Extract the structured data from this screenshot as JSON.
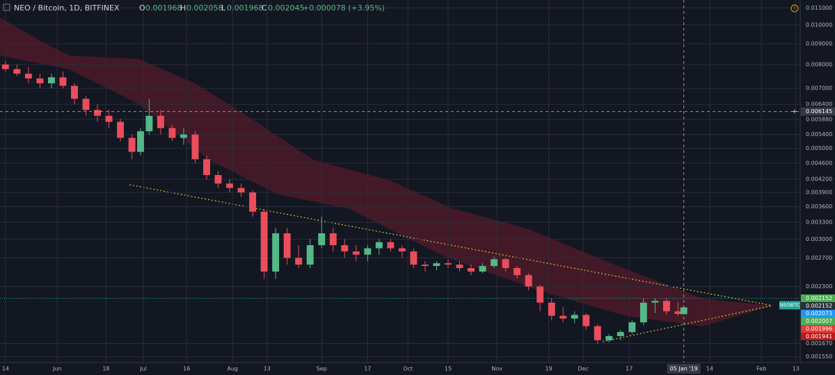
{
  "chart_data": {
    "type": "candlestick",
    "header": {
      "title": "NEO / Bitcoin, 1D, BITFINEX",
      "o_label": "O",
      "open": "0.001968",
      "h_label": "H",
      "high": "0.002058",
      "l_label": "L",
      "low": "0.001968",
      "c_label": "C",
      "close": "0.002045",
      "change": "+0.000078 (+3.95%)"
    },
    "log_scale": true,
    "grid": true,
    "up_color": "#53b987",
    "down_color": "#eb4d5c",
    "ylim": [
      0.0015,
      0.0115
    ],
    "yticks": [
      {
        "value": 0.011,
        "label": "0.011000"
      },
      {
        "value": 0.01,
        "label": "0.010000"
      },
      {
        "value": 0.009,
        "label": "0.009000"
      },
      {
        "value": 0.008,
        "label": "0.008000"
      },
      {
        "value": 0.007,
        "label": "0.007000"
      },
      {
        "value": 0.0064,
        "label": "0.006400"
      },
      {
        "value": 0.00588,
        "label": "0.005880"
      },
      {
        "value": 0.0054,
        "label": "0.005400"
      },
      {
        "value": 0.005,
        "label": "0.005000"
      },
      {
        "value": 0.0046,
        "label": "0.004600"
      },
      {
        "value": 0.0042,
        "label": "0.004200"
      },
      {
        "value": 0.0039,
        "label": "0.003900"
      },
      {
        "value": 0.0036,
        "label": "0.003600"
      },
      {
        "value": 0.0033,
        "label": "0.003300"
      },
      {
        "value": 0.003,
        "label": "0.003000"
      },
      {
        "value": 0.0027,
        "label": "0.002700"
      },
      {
        "value": 0.0023,
        "label": "0.002300"
      },
      {
        "value": 0.00167,
        "label": "0.001670"
      },
      {
        "value": 0.00155,
        "label": "0.001550"
      }
    ],
    "xlim": [
      -1.9,
      276.5
    ],
    "xticks": [
      {
        "value": 0,
        "label": "14"
      },
      {
        "value": 18,
        "label": "Jun"
      },
      {
        "value": 35,
        "label": "18"
      },
      {
        "value": 48,
        "label": "Jul"
      },
      {
        "value": 63,
        "label": "16"
      },
      {
        "value": 79,
        "label": "Aug"
      },
      {
        "value": 91,
        "label": "13"
      },
      {
        "value": 110,
        "label": "Sep"
      },
      {
        "value": 126,
        "label": "17"
      },
      {
        "value": 140,
        "label": "Oct"
      },
      {
        "value": 154,
        "label": "15"
      },
      {
        "value": 171,
        "label": "Nov"
      },
      {
        "value": 189,
        "label": "19"
      },
      {
        "value": 201,
        "label": "Dec"
      },
      {
        "value": 217,
        "label": "17"
      },
      {
        "value": 245,
        "label": "14"
      },
      {
        "value": 263,
        "label": "Feb"
      },
      {
        "value": 275,
        "label": "13"
      }
    ],
    "x": [
      0,
      4,
      8,
      12,
      16,
      20,
      24,
      28,
      32,
      36,
      40,
      44,
      47,
      50,
      54,
      58,
      62,
      66,
      70,
      74,
      78,
      82,
      86,
      90,
      94,
      98,
      102,
      106,
      110,
      114,
      118,
      122,
      126,
      130,
      134,
      138,
      142,
      146,
      150,
      154,
      158,
      162,
      166,
      170,
      174,
      178,
      182,
      186,
      190,
      194,
      198,
      202,
      206,
      210,
      214,
      218,
      222,
      226,
      230,
      234,
      236
    ],
    "open": [
      0.008,
      0.0078,
      0.0076,
      0.0074,
      0.0072,
      0.00745,
      0.0071,
      0.0066,
      0.0062,
      0.006,
      0.0058,
      0.0053,
      0.0049,
      0.0055,
      0.006,
      0.0056,
      0.0053,
      0.0054,
      0.0047,
      0.0043,
      0.0041,
      0.004,
      0.0039,
      0.0035,
      0.0025,
      0.0031,
      0.0027,
      0.0026,
      0.0029,
      0.0031,
      0.0029,
      0.0028,
      0.00275,
      0.00285,
      0.00295,
      0.00285,
      0.0028,
      0.0026,
      0.00258,
      0.00262,
      0.0026,
      0.00255,
      0.0025,
      0.00258,
      0.00268,
      0.00255,
      0.00245,
      0.0023,
      0.0021,
      0.00195,
      0.00192,
      0.00196,
      0.00184,
      0.0017,
      0.00174,
      0.00178,
      0.00188,
      0.0021,
      0.00212,
      0.002,
      0.001968
    ],
    "high": [
      0.00815,
      0.008,
      0.0079,
      0.0076,
      0.0076,
      0.0077,
      0.0072,
      0.0067,
      0.0064,
      0.0062,
      0.0059,
      0.0054,
      0.0056,
      0.0066,
      0.0062,
      0.0057,
      0.0056,
      0.0055,
      0.0048,
      0.0044,
      0.0042,
      0.0041,
      0.00395,
      0.00355,
      0.0032,
      0.0032,
      0.0029,
      0.003,
      0.0034,
      0.0032,
      0.003,
      0.0029,
      0.0029,
      0.003,
      0.003,
      0.0029,
      0.00285,
      0.00265,
      0.00265,
      0.00268,
      0.00265,
      0.0026,
      0.00262,
      0.00272,
      0.0027,
      0.00258,
      0.00248,
      0.00232,
      0.00215,
      0.00205,
      0.002,
      0.00198,
      0.00186,
      0.00176,
      0.0018,
      0.0019,
      0.00215,
      0.00215,
      0.00215,
      0.0021,
      0.002058
    ],
    "low": [
      0.0077,
      0.0075,
      0.0072,
      0.007,
      0.007,
      0.007,
      0.0064,
      0.006,
      0.0058,
      0.0056,
      0.0052,
      0.0047,
      0.0048,
      0.0054,
      0.0054,
      0.0052,
      0.0051,
      0.0046,
      0.0042,
      0.004,
      0.0039,
      0.0038,
      0.0034,
      0.0024,
      0.0024,
      0.0026,
      0.00255,
      0.00255,
      0.00285,
      0.0028,
      0.0027,
      0.00265,
      0.00265,
      0.00275,
      0.0028,
      0.0027,
      0.00255,
      0.0025,
      0.00252,
      0.00255,
      0.0025,
      0.00245,
      0.00248,
      0.00255,
      0.0025,
      0.0024,
      0.00225,
      0.002,
      0.0019,
      0.00188,
      0.00187,
      0.0018,
      0.00167,
      0.00168,
      0.0017,
      0.00176,
      0.00185,
      0.00198,
      0.00196,
      0.00195,
      0.001968
    ],
    "close": [
      0.0078,
      0.0076,
      0.0074,
      0.0072,
      0.00745,
      0.0071,
      0.0066,
      0.0062,
      0.006,
      0.0058,
      0.0053,
      0.0049,
      0.0055,
      0.006,
      0.0056,
      0.0053,
      0.0054,
      0.0047,
      0.0043,
      0.0041,
      0.004,
      0.0039,
      0.0035,
      0.0025,
      0.0031,
      0.0027,
      0.0026,
      0.0029,
      0.0031,
      0.0029,
      0.0028,
      0.00275,
      0.00285,
      0.00295,
      0.00285,
      0.0028,
      0.0026,
      0.00258,
      0.00262,
      0.0026,
      0.00255,
      0.0025,
      0.00258,
      0.00268,
      0.00255,
      0.00245,
      0.0023,
      0.0021,
      0.00195,
      0.00192,
      0.00196,
      0.00184,
      0.0017,
      0.00174,
      0.00178,
      0.00188,
      0.0021,
      0.00212,
      0.002,
      0.00197,
      0.002045
    ],
    "crosshair": {
      "value": 0.006145,
      "label": "0.006145",
      "date": "05 Jan '19",
      "x": 236
    },
    "last_line": 0.002152,
    "symbol_label": "NEOBTC",
    "price_markers": [
      {
        "value": 0.002152,
        "label": "0.002152",
        "color": "#4caf50"
      },
      {
        "value": 0.002152,
        "label": "0.002152",
        "color": "#2a2e39"
      },
      {
        "value": 0.002073,
        "label": "0.002073",
        "color": "#2196f3"
      },
      {
        "value": 0.002007,
        "label": "0.002007",
        "color": "#4caf50"
      },
      {
        "value": 0.001996,
        "label": "0.001996",
        "color": "#e53935"
      },
      {
        "value": 0.001941,
        "label": "0.001941",
        "color": "#b71c1c"
      }
    ]
  }
}
